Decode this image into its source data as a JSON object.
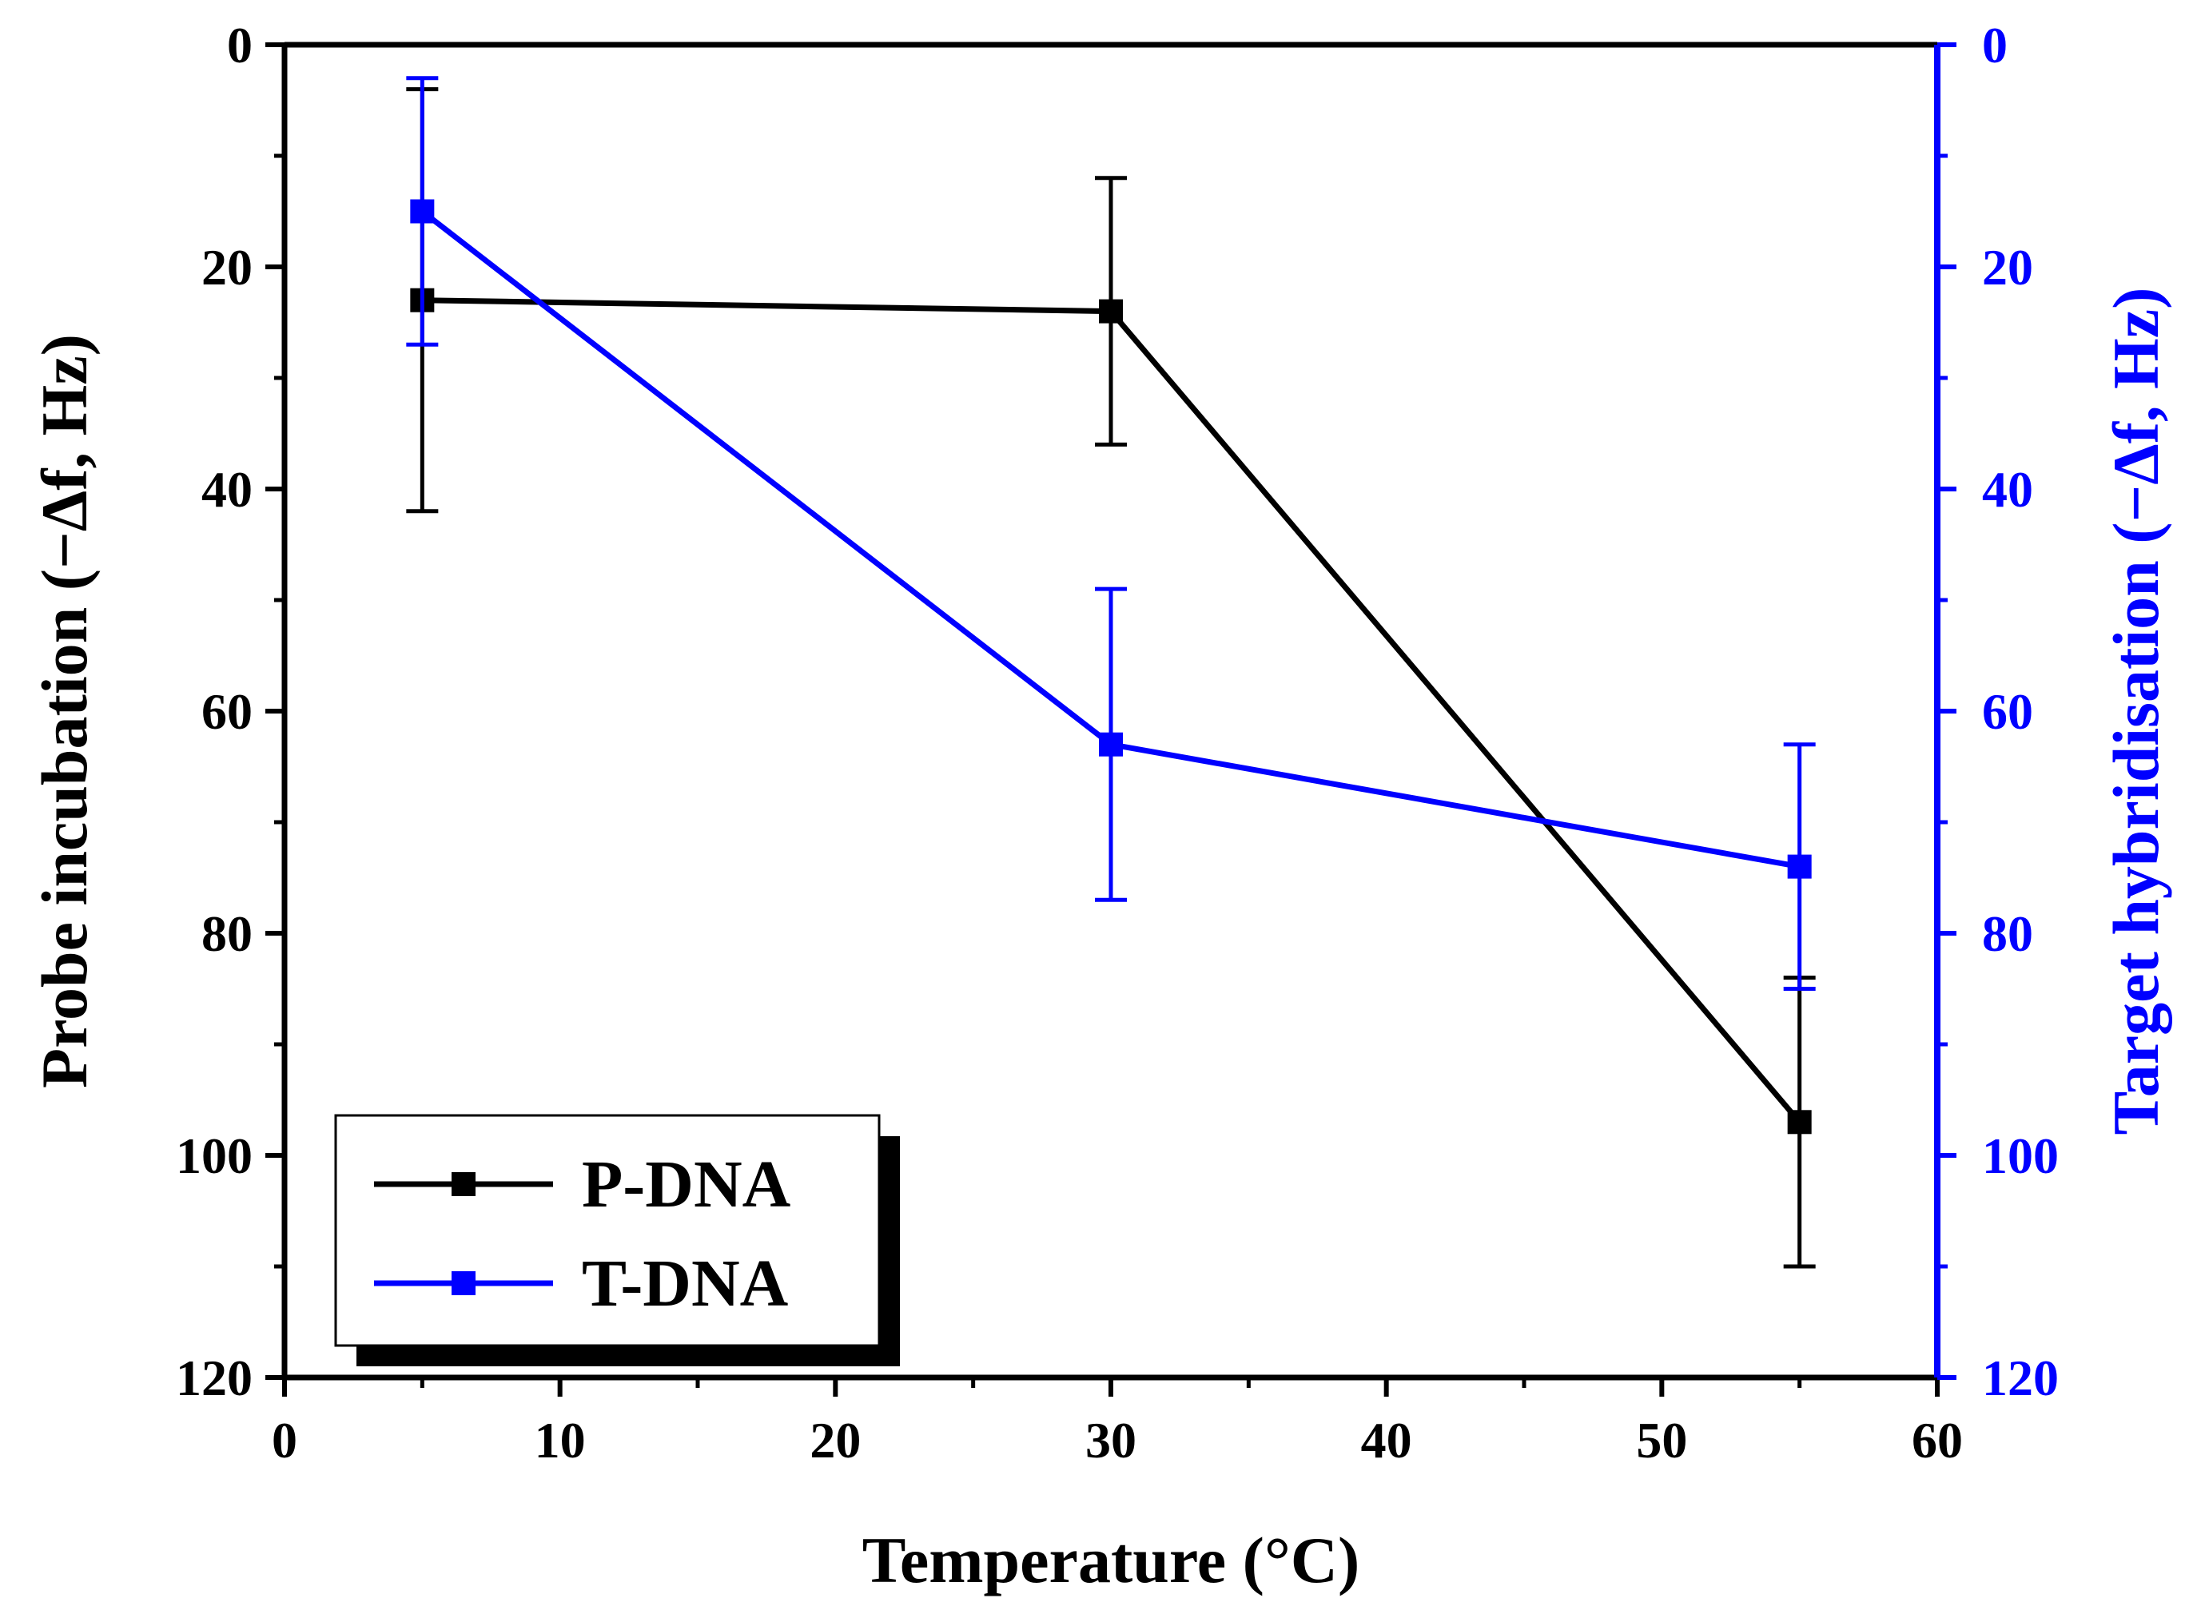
{
  "chart_data": {
    "type": "line",
    "title": "",
    "xlabel": "Temperature (°C)",
    "ylabel_left": "Probe incubation (−Δf, Hz)",
    "ylabel_right": "Target hybridisation (−Δf, Hz)",
    "xlim": [
      0,
      60
    ],
    "ylim_left": [
      0,
      120
    ],
    "ylim_right": [
      0,
      120
    ],
    "y_inverted": true,
    "x_ticks": [
      "0",
      "10",
      "20",
      "30",
      "40",
      "50",
      "60"
    ],
    "y_ticks_left": [
      "0",
      "20",
      "40",
      "60",
      "80",
      "100",
      "120"
    ],
    "y_ticks_right": [
      "0",
      "20",
      "40",
      "60",
      "80",
      "100",
      "120"
    ],
    "grid": false,
    "legend_position": "bottom-left",
    "series": [
      {
        "name": "P-DNA",
        "color": "#000000",
        "axis": "left",
        "x": [
          5,
          30,
          55
        ],
        "values": [
          23,
          24,
          97
        ],
        "error_low": [
          4,
          12,
          84
        ],
        "error_high": [
          42,
          36,
          110
        ]
      },
      {
        "name": "T-DNA",
        "color": "#0000ff",
        "axis": "right",
        "x": [
          5,
          30,
          55
        ],
        "values": [
          15,
          63,
          74
        ],
        "error_low": [
          3,
          49,
          63
        ],
        "error_high": [
          27,
          77,
          85
        ]
      }
    ]
  }
}
